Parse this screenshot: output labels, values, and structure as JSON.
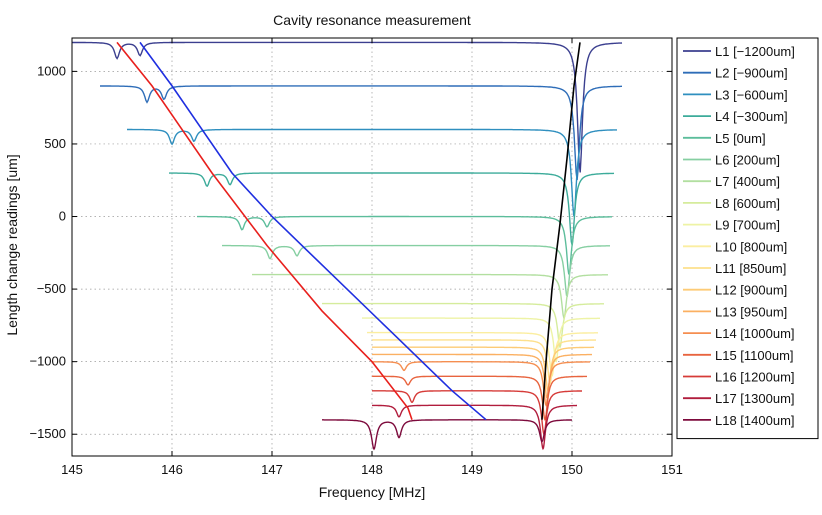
{
  "chart_data": {
    "type": "line",
    "title": "Cavity resonance measurement",
    "xlabel": "Frequency [MHz]",
    "ylabel": "Length change readings [um]",
    "xlim": [
      145,
      151
    ],
    "ylim": [
      -1650,
      1230
    ],
    "xticks": [
      145,
      146,
      147,
      148,
      149,
      150,
      151
    ],
    "yticks": [
      -1500,
      -1000,
      -500,
      0,
      500,
      1000
    ],
    "grid": true,
    "legend_position": "outside-right",
    "series": [
      {
        "name": "L1 [−1200um]",
        "baseline": 1200,
        "x_start": 145.0,
        "x_end": 150.5,
        "dips": [
          [
            145.45,
            110
          ],
          [
            145.68,
            90
          ],
          [
            150.08,
            900
          ]
        ],
        "color": "#3b3f8f"
      },
      {
        "name": "L2 [−900um]",
        "baseline": 900,
        "x_start": 145.28,
        "x_end": 150.5,
        "dips": [
          [
            145.75,
            110
          ],
          [
            145.92,
            90
          ],
          [
            150.05,
            650
          ]
        ],
        "color": "#2e6db8"
      },
      {
        "name": "L3 [−600um]",
        "baseline": 600,
        "x_start": 145.55,
        "x_end": 150.45,
        "dips": [
          [
            146.0,
            100
          ],
          [
            146.22,
            80
          ],
          [
            150.02,
            600
          ]
        ],
        "color": "#2f8fbf"
      },
      {
        "name": "L4 [−300um]",
        "baseline": 300,
        "x_start": 145.97,
        "x_end": 150.42,
        "dips": [
          [
            146.35,
            90
          ],
          [
            146.58,
            80
          ],
          [
            150.0,
            500
          ]
        ],
        "color": "#3cab9a"
      },
      {
        "name": "L5 [0um]",
        "baseline": 0,
        "x_start": 146.25,
        "x_end": 150.4,
        "dips": [
          [
            146.7,
            90
          ],
          [
            146.95,
            70
          ],
          [
            149.97,
            400
          ]
        ],
        "color": "#5cbd9b"
      },
      {
        "name": "L6 [200um]",
        "baseline": -200,
        "x_start": 146.5,
        "x_end": 150.38,
        "dips": [
          [
            146.98,
            90
          ],
          [
            147.25,
            70
          ],
          [
            149.95,
            350
          ]
        ],
        "color": "#86cfa2"
      },
      {
        "name": "L7 [400um]",
        "baseline": -400,
        "x_start": 146.8,
        "x_end": 150.36,
        "dips": [
          [
            149.92,
            300
          ]
        ],
        "color": "#b2dfa0"
      },
      {
        "name": "L8 [600um]",
        "baseline": -600,
        "x_start": 147.5,
        "x_end": 150.32,
        "dips": [
          [
            149.88,
            300
          ]
        ],
        "color": "#d5ec9c"
      },
      {
        "name": "L9 [700um]",
        "baseline": -700,
        "x_start": 147.9,
        "x_end": 150.28,
        "dips": [
          [
            149.84,
            300
          ]
        ],
        "color": "#eef3a5"
      },
      {
        "name": "L10 [800um]",
        "baseline": -800,
        "x_start": 147.95,
        "x_end": 150.26,
        "dips": [
          [
            149.8,
            300
          ]
        ],
        "color": "#fbeea0"
      },
      {
        "name": "L11 [850um]",
        "baseline": -850,
        "x_start": 148.0,
        "x_end": 150.24,
        "dips": [
          [
            149.78,
            300
          ]
        ],
        "color": "#fde08c"
      },
      {
        "name": "L12 [900um]",
        "baseline": -900,
        "x_start": 148.0,
        "x_end": 150.22,
        "dips": [
          [
            149.76,
            300
          ]
        ],
        "color": "#fdcb76"
      },
      {
        "name": "L13 [950um]",
        "baseline": -950,
        "x_start": 148.0,
        "x_end": 150.2,
        "dips": [
          [
            149.75,
            300
          ]
        ],
        "color": "#fbb062"
      },
      {
        "name": "L14 [1000um]",
        "baseline": -1000,
        "x_start": 148.0,
        "x_end": 150.18,
        "dips": [
          [
            148.32,
            60
          ],
          [
            149.74,
            300
          ]
        ],
        "color": "#f58e50"
      },
      {
        "name": "L15 [1100um]",
        "baseline": -1100,
        "x_start": 148.0,
        "x_end": 150.15,
        "dips": [
          [
            148.36,
            60
          ],
          [
            149.73,
            300
          ]
        ],
        "color": "#e8643f"
      },
      {
        "name": "L16 [1200um]",
        "baseline": -1200,
        "x_start": 148.0,
        "x_end": 150.1,
        "dips": [
          [
            148.4,
            80
          ],
          [
            149.72,
            300
          ]
        ],
        "color": "#d63b38"
      },
      {
        "name": "L17 [1300um]",
        "baseline": -1300,
        "x_start": 148.0,
        "x_end": 150.05,
        "dips": [
          [
            148.27,
            80
          ],
          [
            149.71,
            300
          ]
        ],
        "color": "#b11d3d"
      },
      {
        "name": "L18 [1400um]",
        "baseline": -1400,
        "x_start": 147.5,
        "x_end": 150.0,
        "dips": [
          [
            148.02,
            200
          ],
          [
            148.27,
            120
          ],
          [
            149.7,
            150
          ]
        ],
        "color": "#7d0a3c"
      }
    ],
    "fit_lines": [
      {
        "name": "blue-track",
        "color": "#1f2fe0",
        "x": [
          145.68,
          146.0,
          146.6,
          147.0,
          147.6,
          148.2,
          148.8,
          149.14
        ],
        "y": [
          1200,
          900,
          300,
          0,
          -400,
          -800,
          -1200,
          -1400
        ]
      },
      {
        "name": "red-track",
        "color": "#e8201d",
        "x": [
          145.45,
          145.8,
          146.4,
          146.95,
          147.5,
          148.0,
          148.36,
          148.4
        ],
        "y": [
          1200,
          900,
          300,
          -200,
          -650,
          -1000,
          -1320,
          -1400
        ]
      },
      {
        "name": "black-track",
        "color": "#000000",
        "x": [
          149.7,
          149.74,
          149.8,
          149.88,
          149.95,
          150.02,
          150.08
        ],
        "y": [
          -1400,
          -1000,
          -500,
          -50,
          400,
          900,
          1200
        ]
      }
    ]
  }
}
